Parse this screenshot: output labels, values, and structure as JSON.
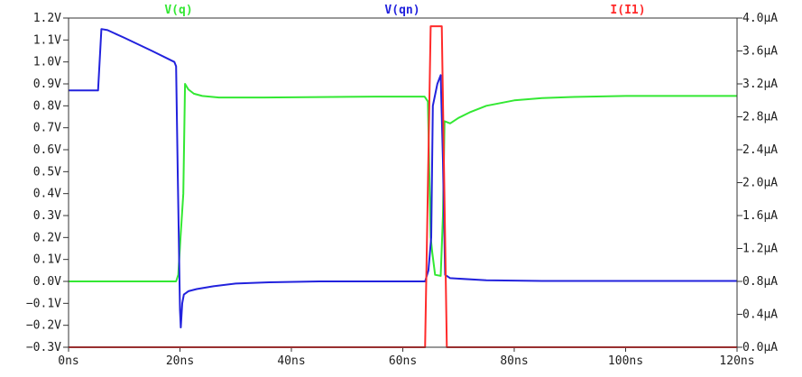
{
  "chart_data": {
    "type": "line",
    "title": "",
    "grid": false,
    "x_axis": {
      "unit": "ns",
      "range": [
        0,
        120
      ],
      "ticks": [
        0,
        20,
        40,
        60,
        80,
        100,
        120
      ],
      "tick_labels": [
        "0ns",
        "20ns",
        "40ns",
        "60ns",
        "80ns",
        "100ns",
        "120ns"
      ]
    },
    "y_axis_left": {
      "unit": "V",
      "range": [
        -0.3,
        1.2
      ],
      "ticks": [
        1.2,
        1.1,
        1.0,
        0.9,
        0.8,
        0.7,
        0.6,
        0.5,
        0.4,
        0.3,
        0.2,
        0.1,
        0.0,
        -0.1,
        -0.2,
        -0.3
      ],
      "tick_labels": [
        "1.2V",
        "1.1V",
        "1.0V",
        "0.9V",
        "0.8V",
        "0.7V",
        "0.6V",
        "0.5V",
        "0.4V",
        "0.3V",
        "0.2V",
        "0.1V",
        "0.0V",
        "−0.1V",
        "−0.2V",
        "−0.3V"
      ]
    },
    "y_axis_right": {
      "unit": "µA",
      "range": [
        0,
        4.0
      ],
      "ticks": [
        4.0,
        3.6,
        3.2,
        2.8,
        2.4,
        2.0,
        1.6,
        1.2,
        0.8,
        0.4,
        0.0
      ],
      "tick_labels": [
        "4.0µA",
        "3.6µA",
        "3.2µA",
        "2.8µA",
        "2.4µA",
        "2.0µA",
        "1.6µA",
        "1.2µA",
        "0.8µA",
        "0.4µA",
        "0.0µA"
      ]
    },
    "legend": {
      "placement": "top"
    },
    "series": [
      {
        "name": "V(q)",
        "color": "#33e833",
        "axis": "left",
        "points": [
          [
            0,
            0.0
          ],
          [
            19.3,
            0.0
          ],
          [
            19.7,
            0.03
          ],
          [
            20.1,
            0.2
          ],
          [
            20.6,
            0.4
          ],
          [
            20.9,
            0.9
          ],
          [
            21.5,
            0.875
          ],
          [
            22.5,
            0.855
          ],
          [
            24,
            0.845
          ],
          [
            27,
            0.838
          ],
          [
            35,
            0.838
          ],
          [
            45,
            0.84
          ],
          [
            55,
            0.842
          ],
          [
            63.9,
            0.842
          ],
          [
            64.5,
            0.82
          ],
          [
            65.0,
            0.2
          ],
          [
            65.3,
            0.13
          ],
          [
            65.8,
            0.03
          ],
          [
            66.8,
            0.025
          ],
          [
            67.2,
            0.3
          ],
          [
            67.5,
            0.73
          ],
          [
            68.5,
            0.72
          ],
          [
            70,
            0.745
          ],
          [
            72,
            0.77
          ],
          [
            75,
            0.8
          ],
          [
            80,
            0.825
          ],
          [
            85,
            0.835
          ],
          [
            90,
            0.84
          ],
          [
            100,
            0.845
          ],
          [
            120,
            0.845
          ]
        ]
      },
      {
        "name": "V(qn)",
        "color": "#2222dd",
        "axis": "left",
        "points": [
          [
            0,
            0.87
          ],
          [
            5.3,
            0.87
          ],
          [
            5.9,
            1.15
          ],
          [
            7,
            1.145
          ],
          [
            10,
            1.11
          ],
          [
            15,
            1.05
          ],
          [
            19.0,
            1.0
          ],
          [
            19.3,
            0.98
          ],
          [
            19.6,
            0.5
          ],
          [
            20.0,
            -0.13
          ],
          [
            20.15,
            -0.21
          ],
          [
            20.4,
            -0.1
          ],
          [
            20.7,
            -0.06
          ],
          [
            21.5,
            -0.045
          ],
          [
            23,
            -0.035
          ],
          [
            26,
            -0.022
          ],
          [
            30,
            -0.01
          ],
          [
            36,
            -0.004
          ],
          [
            45,
            0.0
          ],
          [
            64.0,
            0.0
          ],
          [
            64.6,
            0.05
          ],
          [
            65.1,
            0.2
          ],
          [
            65.4,
            0.8
          ],
          [
            66.2,
            0.9
          ],
          [
            66.8,
            0.94
          ],
          [
            67.2,
            0.55
          ],
          [
            67.6,
            0.03
          ],
          [
            68.5,
            0.015
          ],
          [
            75,
            0.005
          ],
          [
            85,
            0.002
          ],
          [
            120,
            0.002
          ]
        ]
      },
      {
        "name": "I(I1)",
        "color": "#ff2b2b",
        "axis": "right",
        "points": [
          [
            0,
            0.0
          ],
          [
            64.0,
            0.0
          ],
          [
            65.0,
            3.9
          ],
          [
            67.0,
            3.9
          ],
          [
            67.9,
            0.0
          ],
          [
            120,
            0.0
          ]
        ]
      }
    ]
  }
}
